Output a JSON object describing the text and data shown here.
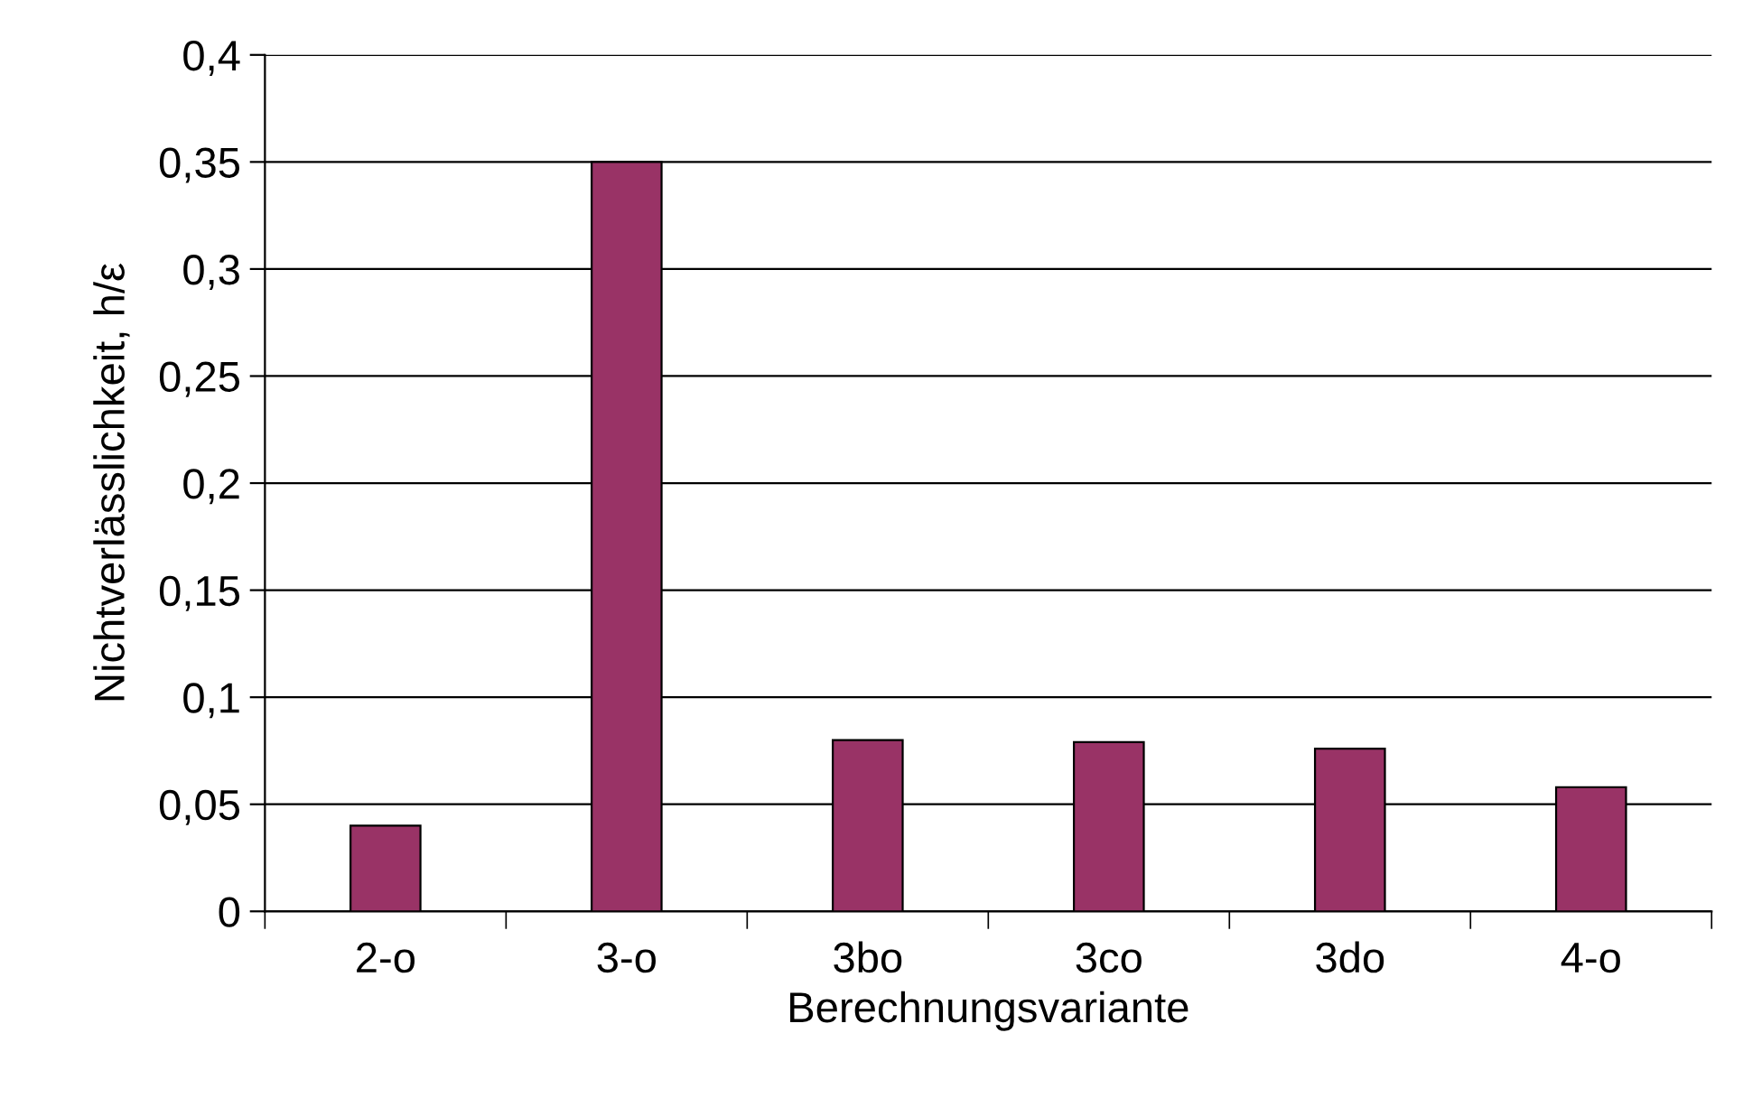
{
  "chart_data": {
    "type": "bar",
    "xlabel": "Berechnungsvariante",
    "ylabel": "Nichtverlässlichkeit, h/ε",
    "categories": [
      "2-o",
      "3-o",
      "3bo",
      "3co",
      "3do",
      "4-o"
    ],
    "values": [
      0.04,
      0.35,
      0.08,
      0.079,
      0.076,
      0.058
    ],
    "color": "#993366",
    "ylim": [
      0,
      0.4
    ],
    "yticks": [
      0,
      {
        "value": 0.05,
        "label": "0,05"
      },
      {
        "value": 0.1,
        "label": "0,1"
      },
      {
        "value": 0.15,
        "label": "0,15"
      },
      {
        "value": 0.2,
        "label": "0,2"
      },
      {
        "value": 0.25,
        "label": "0,25"
      },
      {
        "value": 0.3,
        "label": "0,3"
      },
      {
        "value": 0.35,
        "label": "0,35"
      },
      {
        "value": 0.4,
        "label": "0,4"
      }
    ],
    "grid": "y",
    "legend": false
  }
}
